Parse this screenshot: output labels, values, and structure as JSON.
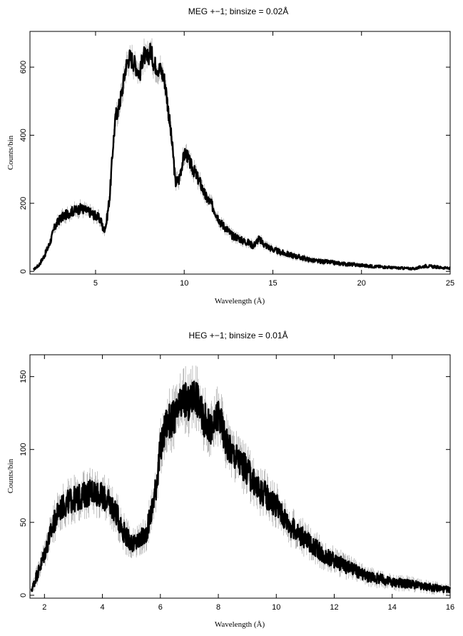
{
  "chart_data": [
    {
      "type": "line",
      "title": "MEG +−1; binsize = 0.02Å",
      "xlabel": "Wavelength (Å)",
      "ylabel": "Counts/bin",
      "xlim": [
        1.3,
        25
      ],
      "ylim": [
        -8,
        705
      ],
      "xticks": [
        5,
        10,
        15,
        20,
        25
      ],
      "yticks": [
        0,
        200,
        400,
        600
      ],
      "grid": false,
      "series": [
        {
          "x": [
            1.5,
            1.8,
            2.1,
            2.4,
            2.7,
            3.0,
            3.3,
            3.6,
            3.9,
            4.2,
            4.5,
            4.8,
            5.1,
            5.3,
            5.45,
            5.6,
            5.8,
            6.0,
            6.15,
            6.3,
            6.5,
            6.7,
            6.9,
            7.1,
            7.3,
            7.5,
            7.7,
            7.9,
            8.1,
            8.3,
            8.5,
            8.7,
            8.9,
            9.0,
            9.2,
            9.4,
            9.5,
            9.7,
            9.9,
            10.0,
            10.1,
            10.3,
            10.6,
            10.9,
            11.2,
            11.5,
            11.8,
            12.1,
            12.4,
            12.7,
            13.0,
            13.3,
            13.6,
            13.9,
            14.2,
            14.5,
            14.8,
            15.1,
            15.5,
            16.0,
            16.5,
            17.0,
            17.5,
            18.0,
            18.5,
            19.0,
            19.5,
            20.0,
            20.5,
            21.0,
            21.5,
            22.0,
            22.5,
            23.0,
            23.3,
            23.6,
            24.0,
            24.5,
            25.0
          ],
          "y": [
            5,
            18,
            45,
            80,
            130,
            155,
            165,
            175,
            180,
            185,
            178,
            170,
            160,
            150,
            120,
            140,
            220,
            380,
            460,
            480,
            530,
            600,
            630,
            620,
            600,
            580,
            640,
            620,
            650,
            610,
            600,
            590,
            560,
            520,
            430,
            330,
            260,
            270,
            320,
            340,
            350,
            320,
            290,
            260,
            220,
            200,
            170,
            140,
            125,
            105,
            100,
            90,
            85,
            75,
            95,
            80,
            70,
            62,
            55,
            48,
            42,
            35,
            30,
            28,
            25,
            22,
            20,
            18,
            15,
            14,
            12,
            10,
            9,
            8,
            12,
            16,
            14,
            11,
            9
          ]
        }
      ]
    },
    {
      "type": "line",
      "title": "HEG +−1; binsize = 0.01Å",
      "xlabel": "Wavelength (Å)",
      "ylabel": "Counts/bin",
      "xlim": [
        1.5,
        16
      ],
      "ylim": [
        -2,
        165
      ],
      "xticks": [
        2,
        4,
        6,
        8,
        10,
        12,
        14,
        16
      ],
      "yticks": [
        0,
        50,
        100,
        150
      ],
      "grid": false,
      "series": [
        {
          "x": [
            1.55,
            1.7,
            1.9,
            2.1,
            2.3,
            2.5,
            2.7,
            2.9,
            3.1,
            3.3,
            3.5,
            3.7,
            3.9,
            4.1,
            4.3,
            4.5,
            4.7,
            4.9,
            5.1,
            5.3,
            5.5,
            5.7,
            5.85,
            6.0,
            6.2,
            6.4,
            6.6,
            6.8,
            7.0,
            7.2,
            7.4,
            7.6,
            7.8,
            8.0,
            8.2,
            8.4,
            8.6,
            8.8,
            9.0,
            9.2,
            9.4,
            9.6,
            9.8,
            10.0,
            10.2,
            10.4,
            10.6,
            10.8,
            11.0,
            11.2,
            11.4,
            11.6,
            11.8,
            12.0,
            12.2,
            12.4,
            12.6,
            12.8,
            13.0,
            13.2,
            13.4,
            13.6,
            13.8,
            14.0,
            14.2,
            14.4,
            14.6,
            14.8,
            15.0,
            15.2,
            15.4,
            15.6,
            15.8,
            16.0
          ],
          "y": [
            3,
            12,
            22,
            35,
            48,
            58,
            62,
            65,
            66,
            68,
            70,
            72,
            69,
            66,
            62,
            55,
            45,
            38,
            35,
            38,
            42,
            58,
            75,
            100,
            118,
            120,
            125,
            135,
            130,
            140,
            125,
            118,
            112,
            125,
            110,
            100,
            95,
            90,
            85,
            78,
            72,
            70,
            65,
            62,
            55,
            50,
            45,
            42,
            38,
            35,
            32,
            28,
            26,
            24,
            22,
            20,
            18,
            16,
            14,
            13,
            12,
            11,
            10,
            9,
            9,
            8,
            8,
            7,
            6,
            6,
            5,
            5,
            4,
            4
          ]
        }
      ]
    }
  ]
}
